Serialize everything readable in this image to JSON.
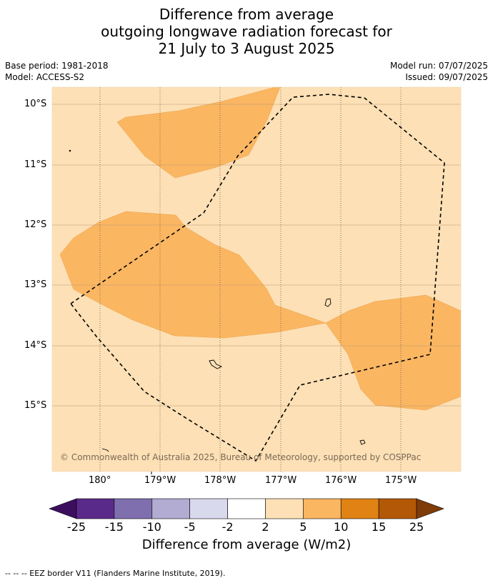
{
  "title": {
    "line1": "Difference from average",
    "line2": "outgoing longwave radiation forecast for",
    "line3": "21 July to 3 August 2025"
  },
  "meta": {
    "base_period": "Base period: 1981-2018",
    "model": "Model: ACCESS-S2",
    "model_run": "Model run: 07/07/2025",
    "issued": "Issued: 09/07/2025"
  },
  "map": {
    "background_color": "#fde0b5",
    "anomaly_color": "#fbb662",
    "lat_labels": [
      "10°S",
      "11°S",
      "12°S",
      "13°S",
      "14°S",
      "15°S"
    ],
    "lon_labels": [
      "180°",
      "179°W",
      "178°W",
      "177°W",
      "176°W",
      "175°W"
    ],
    "copyright": "© Commonwealth of Australia 2025, Bureau of Meteorology, supported by COSPPac"
  },
  "colorbar": {
    "title": "Difference from average (W/m2)",
    "ticks": [
      "-25",
      "-15",
      "-10",
      "-5",
      "-2",
      "2",
      "5",
      "10",
      "15",
      "25"
    ],
    "colors": [
      "#5a2a8a",
      "#7f6fae",
      "#b2abd2",
      "#d8d9ec",
      "#ffffff",
      "#fde0b5",
      "#fbb662",
      "#e08214",
      "#b35806"
    ],
    "under_color": "#3b0f5e",
    "over_color": "#7f3b08"
  },
  "footnote": "-- -- -- EEZ border V11 (Flanders Marine Institute, 2019)."
}
